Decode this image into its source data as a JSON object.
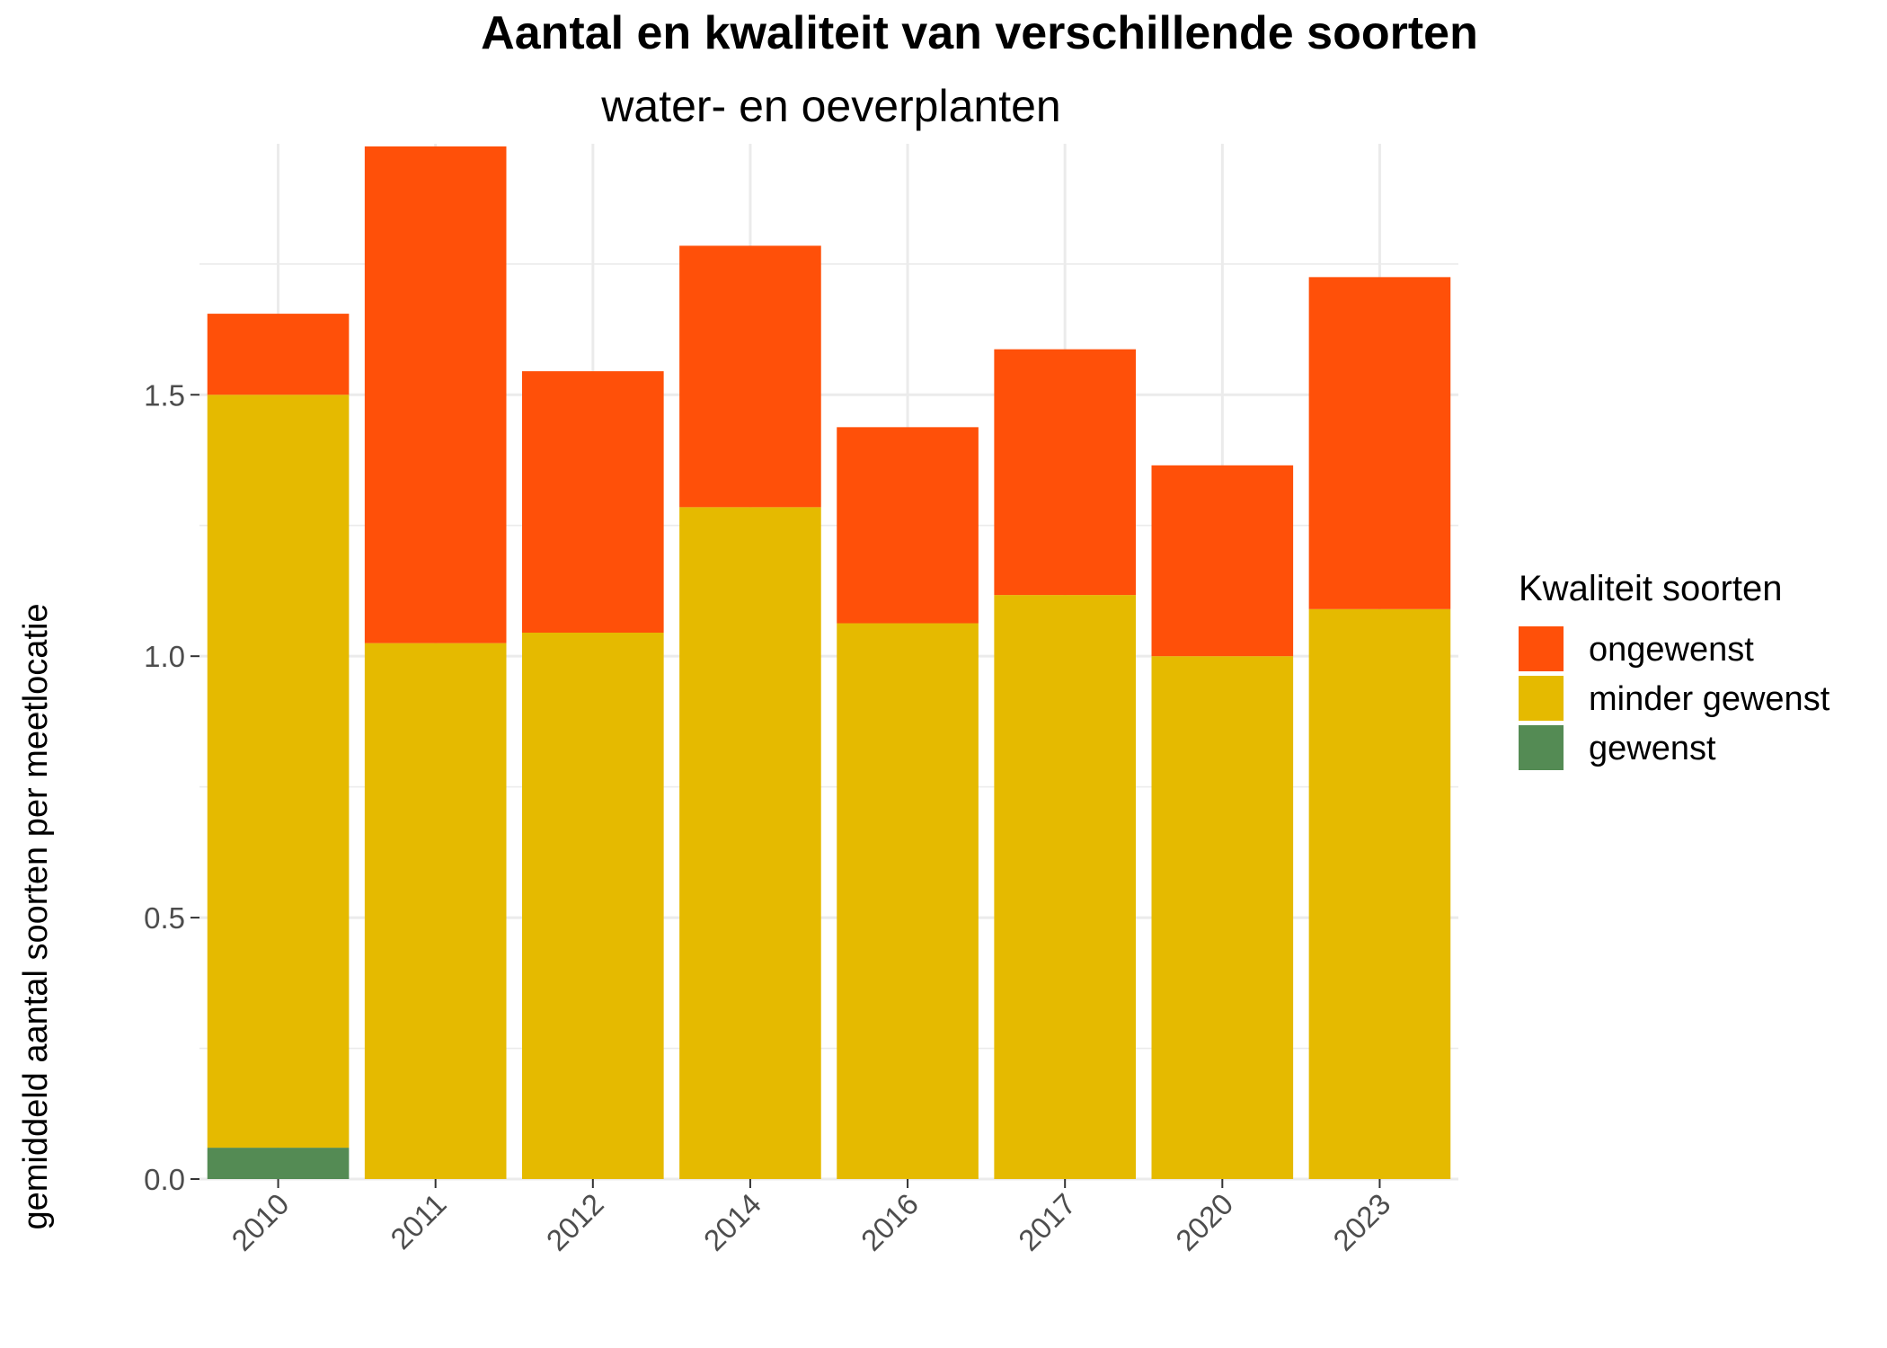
{
  "chart_data": {
    "type": "bar",
    "stacked": true,
    "title": "Aantal en kwaliteit van verschillende soorten",
    "subtitle": "water- en oeverplanten",
    "xlabel": "",
    "ylabel": "gemiddeld aantal soorten per meetlocatie",
    "categories": [
      "2010",
      "2011",
      "2012",
      "2014",
      "2016",
      "2017",
      "2020",
      "2023"
    ],
    "ylim": [
      0,
      1.98
    ],
    "yticks": [
      "0.0",
      "0.5",
      "1.0",
      "1.5"
    ],
    "ytick_values": [
      0,
      0.5,
      1.0,
      1.5
    ],
    "grid": true,
    "legend_position": "right",
    "legend_title": "Kwaliteit soorten",
    "series": [
      {
        "name": "gewenst",
        "color": "#548B54",
        "values": [
          0.06,
          0,
          0,
          0,
          0,
          0,
          0,
          0
        ]
      },
      {
        "name": "minder gewenst",
        "color": "#E5BA00",
        "values": [
          1.44,
          1.025,
          1.045,
          1.285,
          1.063,
          1.117,
          1.0,
          1.09
        ]
      },
      {
        "name": "ongewenst",
        "color": "#FF5009",
        "values": [
          0.155,
          0.95,
          0.5,
          0.5,
          0.375,
          0.47,
          0.365,
          0.635
        ]
      }
    ],
    "legend_order": [
      "ongewenst",
      "minder gewenst",
      "gewenst"
    ]
  }
}
